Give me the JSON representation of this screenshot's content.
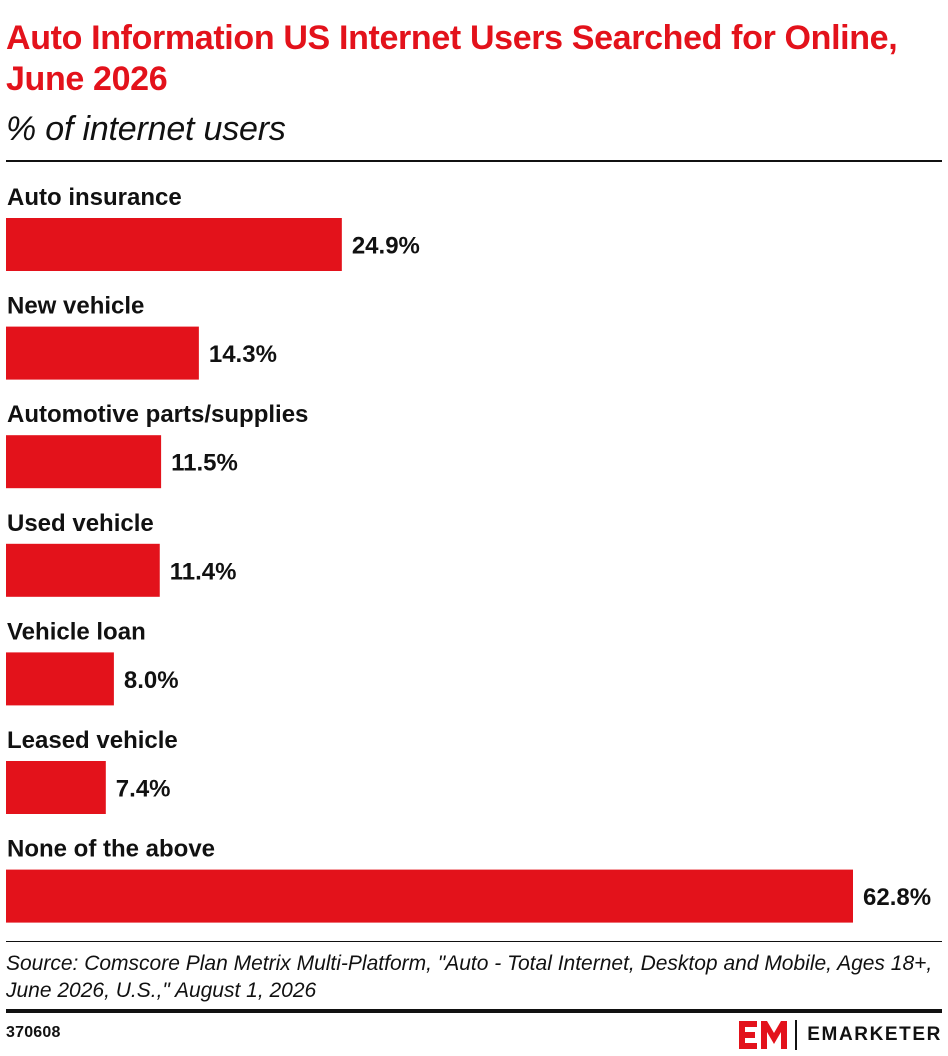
{
  "header": {
    "title": "Auto Information US Internet Users Searched for Online, June 2026",
    "subtitle": "% of internet users"
  },
  "chart_data": {
    "type": "bar",
    "orientation": "horizontal",
    "title": "Auto Information US Internet Users Searched for Online, June 2026",
    "subtitle": "% of internet users",
    "xlabel": "",
    "ylabel": "",
    "categories": [
      "Auto insurance",
      "New vehicle",
      "Automotive parts/supplies",
      "Used vehicle",
      "Vehicle loan",
      "Leased vehicle",
      "None of the above"
    ],
    "values": [
      24.9,
      14.3,
      11.5,
      11.4,
      8.0,
      7.4,
      62.8
    ],
    "value_labels": [
      "24.9%",
      "14.3%",
      "11.5%",
      "11.4%",
      "8.0%",
      "7.4%",
      "62.8%"
    ],
    "unit": "%",
    "xlim": [
      0,
      62.8
    ],
    "grid": false,
    "legend": "none",
    "bar_color": "#e3121b"
  },
  "footer": {
    "source": "Source: Comscore Plan Metrix Multi-Platform, \"Auto - Total Internet, Desktop and Mobile, Ages 18+, June 2026, U.S.,\" August 1, 2026",
    "chart_id": "370608",
    "brand_name": "EMARKETER",
    "brand_mark": "EM",
    "brand_icon": "emarketer-logo-icon"
  },
  "colors": {
    "accent": "#e3121b",
    "text": "#111111",
    "background": "#ffffff"
  }
}
